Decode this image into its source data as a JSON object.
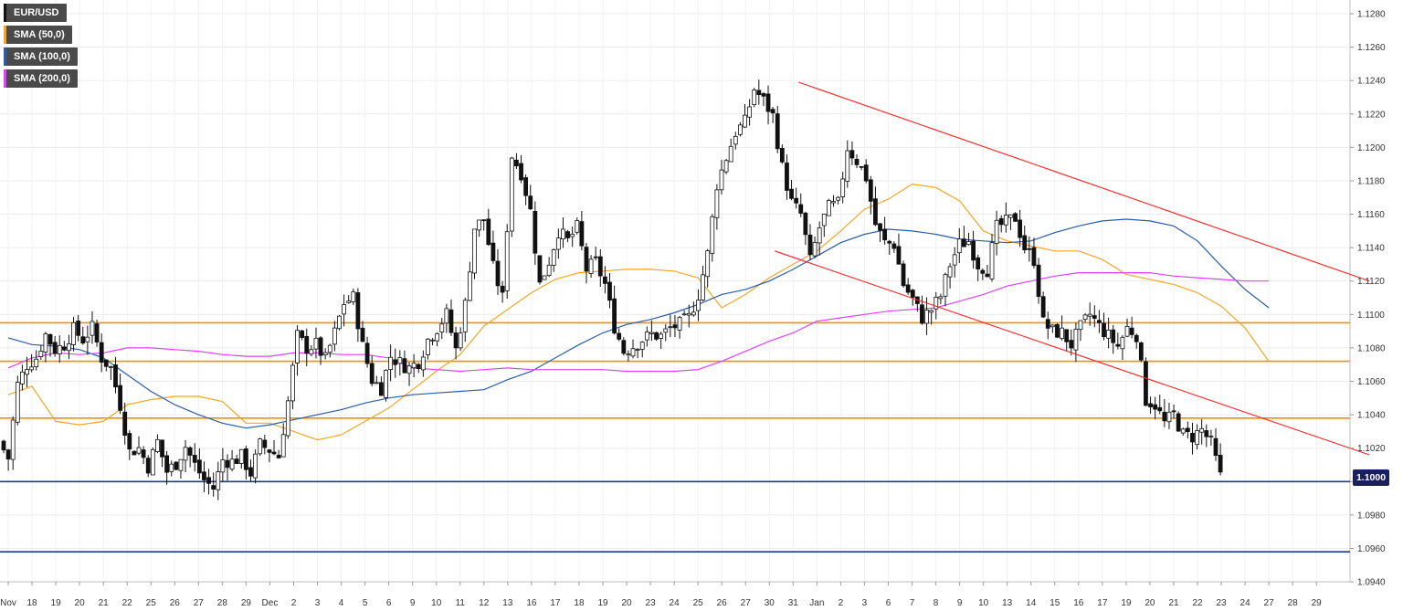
{
  "legend": [
    {
      "label": "EUR/USD",
      "color": "#111111"
    },
    {
      "label": "SMA (50,0)",
      "color": "#f5a623"
    },
    {
      "label": "SMA (100,0)",
      "color": "#2a5caa"
    },
    {
      "label": "SMA (200,0)",
      "color": "#e040fb"
    }
  ],
  "price_badge": "1.1000",
  "chart_data": {
    "type": "candlestick",
    "symbol": "EUR/USD",
    "ylim": [
      1.093,
      1.1285
    ],
    "y_ticks": [
      "1.1280",
      "1.1260",
      "1.1240",
      "1.1220",
      "1.1200",
      "1.1180",
      "1.1160",
      "1.1140",
      "1.1120",
      "1.1100",
      "1.1080",
      "1.1060",
      "1.1040",
      "1.1020",
      "1.1000",
      "1.0980",
      "1.0960",
      "1.0940"
    ],
    "x_labels": [
      "Nov",
      "18",
      "19",
      "20",
      "21",
      "22",
      "25",
      "26",
      "27",
      "28",
      "29",
      "Dec",
      "2",
      "3",
      "4",
      "5",
      "6",
      "9",
      "10",
      "11",
      "12",
      "13",
      "16",
      "17",
      "18",
      "19",
      "20",
      "23",
      "24",
      "25",
      "26",
      "27",
      "30",
      "31",
      "Jan",
      "2",
      "3",
      "6",
      "7",
      "8",
      "9",
      "10",
      "13",
      "14",
      "15",
      "16",
      "17",
      "19",
      "20",
      "21",
      "22",
      "23",
      "24",
      "27",
      "28",
      "29"
    ],
    "horizontal_levels": [
      {
        "value": 1.1095,
        "color": "#ff8c00"
      },
      {
        "value": 1.1072,
        "color": "#ff8c00"
      },
      {
        "value": 1.1038,
        "color": "#ff8c00"
      },
      {
        "value": 1.1,
        "color": "#1a3d8f"
      },
      {
        "value": 1.0958,
        "color": "#1a3d8f"
      }
    ],
    "trendlines": [
      {
        "from": {
          "x": "Dec 31",
          "y": 1.1239
        },
        "to": {
          "x": "Jan 29",
          "y": 1.112
        },
        "color": "#ff2020"
      },
      {
        "from": {
          "x": "Dec 30",
          "y": 1.1138
        },
        "to": {
          "x": "Jan 29",
          "y": 1.1016
        },
        "color": "#ff2020"
      }
    ],
    "sma_series": [
      {
        "name": "SMA (50,0)",
        "color": "#f5a623",
        "values": [
          [
            0,
            1.1052
          ],
          [
            1,
            1.1057
          ],
          [
            2,
            1.1036
          ],
          [
            3,
            1.1034
          ],
          [
            4,
            1.1036
          ],
          [
            5,
            1.1046
          ],
          [
            6,
            1.1049
          ],
          [
            7,
            1.1051
          ],
          [
            8,
            1.1051
          ],
          [
            9,
            1.1048
          ],
          [
            10,
            1.1035
          ],
          [
            11,
            1.1035
          ],
          [
            12,
            1.103
          ],
          [
            13,
            1.1025
          ],
          [
            14,
            1.1028
          ],
          [
            15,
            1.1036
          ],
          [
            16,
            1.1044
          ],
          [
            17,
            1.1055
          ],
          [
            18,
            1.1066
          ],
          [
            19,
            1.1076
          ],
          [
            20,
            1.1093
          ],
          [
            21,
            1.1103
          ],
          [
            22,
            1.1113
          ],
          [
            23,
            1.1121
          ],
          [
            24,
            1.1125
          ],
          [
            25,
            1.1126
          ],
          [
            26,
            1.1127
          ],
          [
            27,
            1.1127
          ],
          [
            28,
            1.1126
          ],
          [
            29,
            1.1122
          ],
          [
            30,
            1.1104
          ],
          [
            31,
            1.1112
          ],
          [
            32,
            1.1122
          ],
          [
            33,
            1.113
          ],
          [
            34,
            1.1138
          ],
          [
            35,
            1.115
          ],
          [
            36,
            1.1163
          ],
          [
            37,
            1.1169
          ],
          [
            38,
            1.1178
          ],
          [
            39,
            1.1176
          ],
          [
            40,
            1.1168
          ],
          [
            41,
            1.115
          ],
          [
            42,
            1.1144
          ],
          [
            43,
            1.1141
          ],
          [
            44,
            1.1138
          ],
          [
            45,
            1.1138
          ],
          [
            46,
            1.1133
          ],
          [
            47,
            1.1124
          ],
          [
            48,
            1.1121
          ],
          [
            49,
            1.1118
          ],
          [
            50,
            1.1113
          ],
          [
            51,
            1.1105
          ],
          [
            52,
            1.1092
          ],
          [
            53,
            1.1072
          ]
        ]
      },
      {
        "name": "SMA (100,0)",
        "color": "#2a5caa",
        "values": [
          [
            0,
            1.1086
          ],
          [
            1,
            1.1082
          ],
          [
            2,
            1.1081
          ],
          [
            3,
            1.1079
          ],
          [
            4,
            1.1074
          ],
          [
            5,
            1.1064
          ],
          [
            6,
            1.1054
          ],
          [
            7,
            1.1046
          ],
          [
            8,
            1.104
          ],
          [
            9,
            1.1035
          ],
          [
            10,
            1.1032
          ],
          [
            11,
            1.1034
          ],
          [
            12,
            1.1037
          ],
          [
            13,
            1.104
          ],
          [
            14,
            1.1043
          ],
          [
            15,
            1.1047
          ],
          [
            16,
            1.105
          ],
          [
            17,
            1.1052
          ],
          [
            18,
            1.1053
          ],
          [
            19,
            1.1054
          ],
          [
            20,
            1.1055
          ],
          [
            21,
            1.1061
          ],
          [
            22,
            1.1066
          ],
          [
            23,
            1.1074
          ],
          [
            24,
            1.1082
          ],
          [
            25,
            1.1089
          ],
          [
            26,
            1.1094
          ],
          [
            27,
            1.1097
          ],
          [
            28,
            1.1101
          ],
          [
            29,
            1.1106
          ],
          [
            30,
            1.1112
          ],
          [
            31,
            1.1115
          ],
          [
            32,
            1.112
          ],
          [
            33,
            1.1127
          ],
          [
            34,
            1.1135
          ],
          [
            35,
            1.1143
          ],
          [
            36,
            1.1148
          ],
          [
            37,
            1.1151
          ],
          [
            38,
            1.115
          ],
          [
            39,
            1.1148
          ],
          [
            40,
            1.1145
          ],
          [
            41,
            1.1144
          ],
          [
            42,
            1.1143
          ],
          [
            43,
            1.1144
          ],
          [
            44,
            1.1149
          ],
          [
            45,
            1.1153
          ],
          [
            46,
            1.1156
          ],
          [
            47,
            1.1157
          ],
          [
            48,
            1.1156
          ],
          [
            49,
            1.1153
          ],
          [
            50,
            1.1144
          ],
          [
            51,
            1.1129
          ],
          [
            52,
            1.1115
          ],
          [
            53,
            1.1104
          ]
        ]
      },
      {
        "name": "SMA (200,0)",
        "color": "#e040fb",
        "values": [
          [
            0,
            1.1068
          ],
          [
            1,
            1.1074
          ],
          [
            2,
            1.1077
          ],
          [
            3,
            1.1076
          ],
          [
            4,
            1.1077
          ],
          [
            5,
            1.108
          ],
          [
            6,
            1.108
          ],
          [
            7,
            1.1079
          ],
          [
            8,
            1.1078
          ],
          [
            9,
            1.1076
          ],
          [
            10,
            1.1075
          ],
          [
            11,
            1.1075
          ],
          [
            12,
            1.1077
          ],
          [
            13,
            1.1077
          ],
          [
            14,
            1.1076
          ],
          [
            15,
            1.1076
          ],
          [
            16,
            1.1074
          ],
          [
            17,
            1.1068
          ],
          [
            18,
            1.1067
          ],
          [
            19,
            1.1066
          ],
          [
            20,
            1.1067
          ],
          [
            21,
            1.1068
          ],
          [
            22,
            1.1067
          ],
          [
            23,
            1.1067
          ],
          [
            24,
            1.1067
          ],
          [
            25,
            1.1067
          ],
          [
            26,
            1.1066
          ],
          [
            27,
            1.1066
          ],
          [
            28,
            1.1066
          ],
          [
            29,
            1.1067
          ],
          [
            30,
            1.1072
          ],
          [
            31,
            1.1078
          ],
          [
            32,
            1.1084
          ],
          [
            33,
            1.1089
          ],
          [
            34,
            1.1096
          ],
          [
            35,
            1.1098
          ],
          [
            36,
            1.11
          ],
          [
            37,
            1.1102
          ],
          [
            38,
            1.1103
          ],
          [
            39,
            1.1104
          ],
          [
            40,
            1.1108
          ],
          [
            41,
            1.1112
          ],
          [
            42,
            1.1117
          ],
          [
            43,
            1.112
          ],
          [
            44,
            1.1123
          ],
          [
            45,
            1.1125
          ],
          [
            46,
            1.1125
          ],
          [
            47,
            1.1125
          ],
          [
            48,
            1.1125
          ],
          [
            49,
            1.1123
          ],
          [
            50,
            1.1122
          ],
          [
            51,
            1.1121
          ],
          [
            52,
            1.112
          ],
          [
            53,
            1.112
          ]
        ]
      }
    ],
    "candles_path": [
      1.1024,
      1.1014,
      1.1058,
      1.107,
      1.1074,
      1.1088,
      1.1079,
      1.1082,
      1.1091,
      1.1085,
      1.1092,
      1.1074,
      1.1068,
      1.1046,
      1.1018,
      1.102,
      1.1009,
      1.1024,
      1.1006,
      1.1011,
      1.1021,
      1.101,
      1.1001,
      1.0996,
      1.1013,
      1.1012,
      1.1015,
      1.1005,
      1.1022,
      1.1019,
      1.1015,
      1.1048,
      1.1087,
      1.108,
      1.1082,
      1.1073,
      1.1089,
      1.1107,
      1.111,
      1.1081,
      1.1061,
      1.1056,
      1.1075,
      1.1071,
      1.1068,
      1.1072,
      1.1085,
      1.1092,
      1.11,
      1.1079,
      1.1106,
      1.1152,
      1.1157,
      1.1128,
      1.111,
      1.1195,
      1.1185,
      1.1162,
      1.1118,
      1.1132,
      1.115,
      1.1144,
      1.1152,
      1.1127,
      1.1131,
      1.1118,
      1.1093,
      1.1078,
      1.1081,
      1.1085,
      1.1088,
      1.1087,
      1.1092,
      1.1094,
      1.1098,
      1.1112,
      1.1136,
      1.1178,
      1.1194,
      1.1209,
      1.1215,
      1.1235,
      1.1228,
      1.1219,
      1.1188,
      1.1167,
      1.116,
      1.1132,
      1.1152,
      1.1164,
      1.1166,
      1.12,
      1.1192,
      1.1182,
      1.1154,
      1.1143,
      1.1142,
      1.1118,
      1.1109,
      1.1098,
      1.1103,
      1.1111,
      1.113,
      1.1142,
      1.1144,
      1.113,
      1.1127,
      1.1152,
      1.1155,
      1.1158,
      1.114,
      1.1133,
      1.1095,
      1.109,
      1.1089,
      1.1082,
      1.1092,
      1.11,
      1.1093,
      1.1087,
      1.1081,
      1.1092,
      1.1088,
      1.1049,
      1.1046,
      1.1035,
      1.104,
      1.1028,
      1.1027,
      1.1031,
      1.1023,
      1.1003
    ]
  }
}
